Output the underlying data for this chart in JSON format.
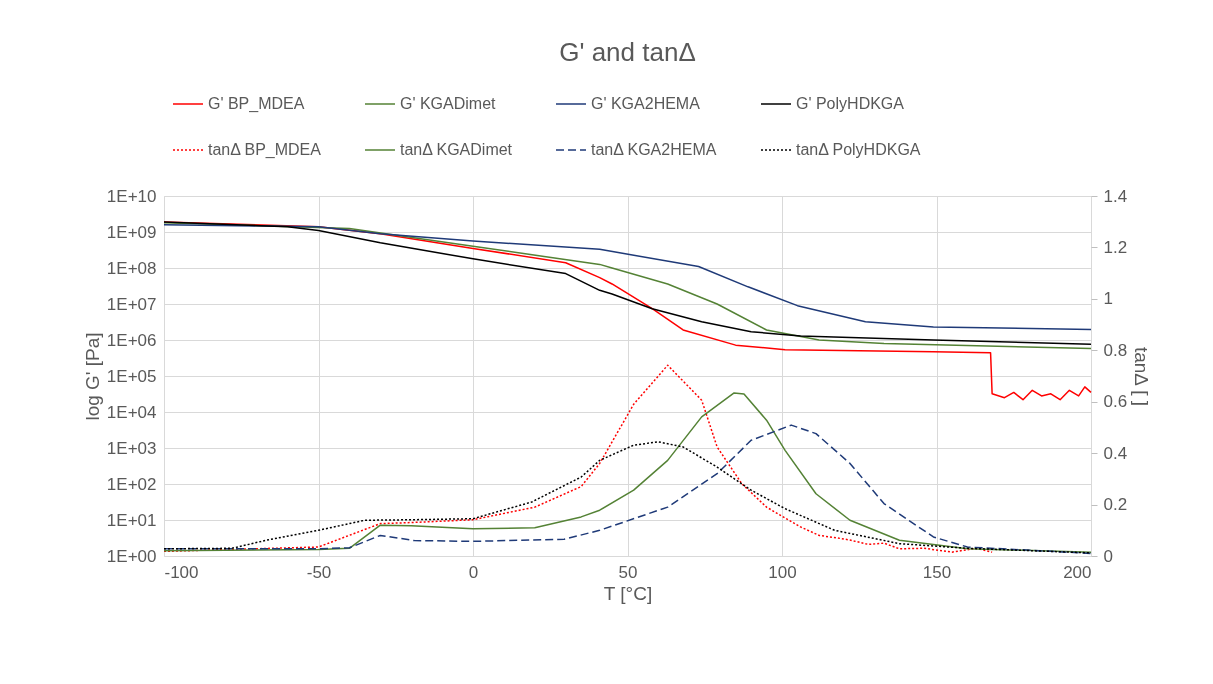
{
  "chart_data": {
    "type": "line",
    "title": "G' and tanΔ",
    "xlabel": "T [°C]",
    "ylabel": "log G' [Pa]",
    "y2label": "tanΔ [ ]",
    "xlim": [
      -100,
      200
    ],
    "xticks": [
      -100,
      -50,
      0,
      50,
      100,
      150,
      200
    ],
    "ylim": [
      1,
      10000000000
    ],
    "log": "y",
    "yticks": [
      {
        "value": 1,
        "label": "1E+00"
      },
      {
        "value": 10,
        "label": "1E+01"
      },
      {
        "value": 100,
        "label": "1E+02"
      },
      {
        "value": 1000,
        "label": "1E+03"
      },
      {
        "value": 10000,
        "label": "1E+04"
      },
      {
        "value": 100000,
        "label": "1E+05"
      },
      {
        "value": 1000000,
        "label": "1E+06"
      },
      {
        "value": 10000000,
        "label": "1E+07"
      },
      {
        "value": 100000000,
        "label": "1E+08"
      },
      {
        "value": 1000000000,
        "label": "1E+09"
      },
      {
        "value": 10000000000,
        "label": "1E+10"
      }
    ],
    "y2lim": [
      0,
      1.4
    ],
    "y2ticks": [
      0,
      0.2,
      0.4,
      0.6,
      0.8,
      1,
      1.2,
      1.4
    ],
    "grid": true,
    "legend": "top",
    "marker": "none",
    "series": [
      {
        "name": "G' BP_MDEA",
        "color": "#ff0000",
        "line_style": "solid",
        "x": [
          -100,
          -50,
          -30,
          0,
          30,
          41,
          45,
          58,
          68,
          85,
          101,
          149,
          167.5,
          168,
          172,
          175,
          178,
          181,
          184,
          187,
          190,
          193,
          196,
          198,
          200
        ],
        "values": [
          1900000000.0,
          1400000000.0,
          890000000.0,
          350000000.0,
          140000000.0,
          54000000.0,
          36000000.0,
          7400000.0,
          1900000.0,
          720000.0,
          540000.0,
          470000.0,
          440000.0,
          32000.0,
          25000.0,
          35000.0,
          22000.0,
          40000.0,
          28000.0,
          32000.0,
          22000.0,
          40000.0,
          28000.0,
          50000.0,
          35000.0
        ]
      },
      {
        "name": "G' KGADimet",
        "color": "#548235",
        "line_style": "solid",
        "x": [
          -100,
          -40,
          0,
          41,
          45,
          63,
          79,
          95,
          112,
          133,
          200
        ],
        "values": [
          1800000000.0,
          1260000000.0,
          400000000.0,
          126000000.0,
          100000000.0,
          36000000.0,
          10000000.0,
          1900000.0,
          1000000.0,
          800000.0,
          580000.0
        ]
      },
      {
        "name": "G' KGA2HEMA",
        "color": "#1f3a78",
        "line_style": "solid",
        "x": [
          -100,
          -50,
          -30,
          0,
          41,
          73,
          89,
          105,
          127,
          149,
          200
        ],
        "values": [
          1600000000.0,
          1400000000.0,
          890000000.0,
          560000000.0,
          330000000.0,
          110000000.0,
          30000000.0,
          9000000.0,
          3200000.0,
          2300000.0,
          1950000.0
        ]
      },
      {
        "name": "G' PolyHDKGA",
        "color": "#000000",
        "line_style": "solid",
        "x": [
          -100,
          -60,
          -50,
          -30,
          0,
          30,
          41,
          45,
          58,
          74,
          90,
          106,
          149,
          200
        ],
        "values": [
          1900000000.0,
          1400000000.0,
          1100000000.0,
          500000000.0,
          180000000.0,
          70000000.0,
          24000000.0,
          19000000.0,
          7400000.0,
          3200000.0,
          1700000.0,
          1300000.0,
          1000000.0,
          760000.0
        ]
      },
      {
        "name": "tanΔ BP_MDEA",
        "color": "#ff0000",
        "line_style": "dotted",
        "axis": "y2",
        "x": [
          -100,
          -50,
          -30,
          -20,
          0,
          20,
          35,
          41,
          52,
          63,
          74,
          79,
          87,
          95,
          106,
          112,
          118,
          122,
          128,
          133,
          138,
          146,
          155,
          163,
          168
        ],
        "values": [
          0.018,
          0.035,
          0.126,
          0.13,
          0.141,
          0.19,
          0.27,
          0.36,
          0.59,
          0.742,
          0.606,
          0.424,
          0.281,
          0.19,
          0.113,
          0.08,
          0.07,
          0.062,
          0.045,
          0.05,
          0.028,
          0.03,
          0.015,
          0.03,
          0.015
        ]
      },
      {
        "name": "tanΔ KGADimet",
        "color": "#548235",
        "line_style": "solid",
        "axis": "y2",
        "x": [
          -100,
          -50,
          -40,
          -30,
          -20,
          0,
          20,
          35,
          41,
          52,
          63,
          74,
          84.5,
          87.7,
          95,
          101,
          111,
          122,
          138,
          160,
          200
        ],
        "values": [
          0.02,
          0.025,
          0.03,
          0.12,
          0.118,
          0.106,
          0.11,
          0.152,
          0.178,
          0.256,
          0.372,
          0.541,
          0.634,
          0.63,
          0.528,
          0.411,
          0.242,
          0.139,
          0.061,
          0.028,
          0.015
        ]
      },
      {
        "name": "tanΔ KGA2HEMA",
        "color": "#1f3a78",
        "line_style": "dashed",
        "axis": "y2",
        "x": [
          -100,
          -50,
          -40,
          -30,
          -19,
          0,
          29.5,
          41,
          63,
          79,
          90,
          103,
          111,
          122,
          133,
          149,
          160,
          200
        ],
        "values": [
          0.028,
          0.028,
          0.032,
          0.08,
          0.06,
          0.057,
          0.065,
          0.1,
          0.19,
          0.32,
          0.45,
          0.509,
          0.476,
          0.36,
          0.204,
          0.074,
          0.035,
          0.01
        ]
      },
      {
        "name": "tanΔ PolyHDKGA",
        "color": "#000000",
        "line_style": "dotted",
        "axis": "y2",
        "x": [
          -100,
          -78,
          -67,
          -50,
          -35,
          -20,
          0,
          19,
          35,
          41,
          52,
          60,
          68,
          79,
          90,
          101,
          117,
          138,
          160,
          200
        ],
        "values": [
          0.028,
          0.03,
          0.061,
          0.1,
          0.139,
          0.141,
          0.145,
          0.21,
          0.307,
          0.372,
          0.431,
          0.444,
          0.424,
          0.346,
          0.256,
          0.184,
          0.1,
          0.048,
          0.03,
          0.012
        ]
      }
    ]
  }
}
